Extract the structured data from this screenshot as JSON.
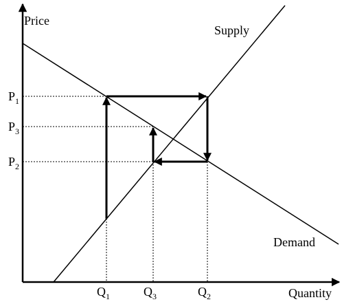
{
  "axes": {
    "y_label": "Price",
    "x_label": "Quantity"
  },
  "curves": {
    "supply": "Supply",
    "demand": "Demand"
  },
  "prices": [
    {
      "letter": "P",
      "sub": "1"
    },
    {
      "letter": "P",
      "sub": "3"
    },
    {
      "letter": "P",
      "sub": "2"
    }
  ],
  "quantities": [
    {
      "letter": "Q",
      "sub": "1"
    },
    {
      "letter": "Q",
      "sub": "3"
    },
    {
      "letter": "Q",
      "sub": "2"
    }
  ]
}
